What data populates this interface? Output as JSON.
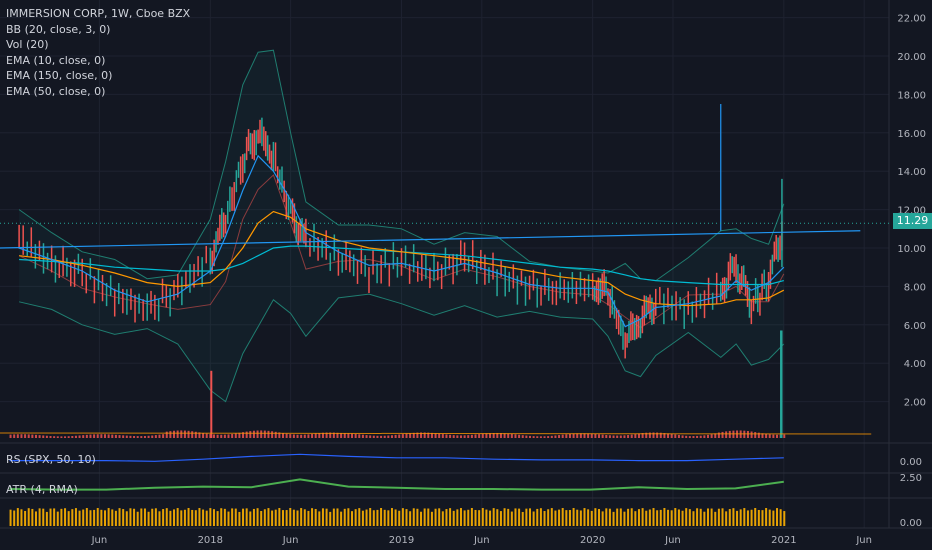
{
  "header": {
    "symbol_line": "IMMERSION CORP, 1W, Cboe BZX",
    "indicators": [
      "BB (20, close, 3, 0)",
      "Vol (20)",
      "EMA (10, close, 0)",
      "EMA (150, close, 0)",
      "EMA (50, close, 0)"
    ]
  },
  "price_tag": "11.29",
  "panes": {
    "rs_label": "RS (SPX, 50, 10)",
    "atr_label": "ATR (4, RMA)",
    "rs_ticks": [
      "0.00"
    ],
    "atr_ticks": [
      "2.50"
    ],
    "bottom_ticks": [
      "0.00"
    ]
  },
  "colors": {
    "background": "#131722",
    "up": "#26a69a",
    "down": "#ef5350",
    "bb_band": "#1f7d70",
    "ema10": "#2196f3",
    "ema50": "#ff9800",
    "ema150": "#00bcd4",
    "trendline": "#2196f3",
    "rs": "#2962ff",
    "atr": "#4caf50",
    "bottom": "#ffb300"
  },
  "chart_data": {
    "type": "line",
    "title": "IMMERSION CORP, 1W, Cboe BZX",
    "ylim": [
      0,
      22
    ],
    "y_ticks": [
      "2.00",
      "4.00",
      "6.00",
      "8.00",
      "10.00",
      "12.00",
      "14.00",
      "16.00",
      "18.00",
      "20.00",
      "22.00"
    ],
    "x_tick_labels": [
      "Jun",
      "2018",
      "Jun",
      "2019",
      "Jun",
      "2020",
      "Jun",
      "2021",
      "Jun"
    ],
    "x": [
      2017.0,
      2017.17,
      2017.33,
      2017.5,
      2017.67,
      2017.83,
      2018.0,
      2018.08,
      2018.17,
      2018.25,
      2018.33,
      2018.42,
      2018.5,
      2018.67,
      2018.83,
      2019.0,
      2019.17,
      2019.33,
      2019.5,
      2019.67,
      2019.83,
      2020.0,
      2020.08,
      2020.17,
      2020.25,
      2020.33,
      2020.5,
      2020.67,
      2020.75,
      2020.83,
      2020.92,
      2021.0
    ],
    "series": [
      {
        "name": "Close",
        "values": [
          10.5,
          9.2,
          8.7,
          7.5,
          6.8,
          7.8,
          9.5,
          11.5,
          14.5,
          16.0,
          14.8,
          11.8,
          10.5,
          9.5,
          8.8,
          9.3,
          8.7,
          9.5,
          8.6,
          7.9,
          7.8,
          8.0,
          7.7,
          5.2,
          6.2,
          7.3,
          6.8,
          7.8,
          9.1,
          7.0,
          8.2,
          11.29
        ]
      },
      {
        "name": "EMA (10, close, 0)",
        "values": [
          10.0,
          9.4,
          8.8,
          7.8,
          7.2,
          7.6,
          8.8,
          10.6,
          13.0,
          14.8,
          14.0,
          12.5,
          10.8,
          9.8,
          9.1,
          9.2,
          8.8,
          9.2,
          8.7,
          8.1,
          7.9,
          7.9,
          7.7,
          5.9,
          6.3,
          6.9,
          7.1,
          7.5,
          8.3,
          7.8,
          8.2,
          9.0
        ]
      },
      {
        "name": "EMA (50, close, 0)",
        "values": [
          9.6,
          9.4,
          9.1,
          8.7,
          8.2,
          8.0,
          8.2,
          8.9,
          10.0,
          11.3,
          11.9,
          11.6,
          11.0,
          10.4,
          10.0,
          9.8,
          9.6,
          9.4,
          9.1,
          8.8,
          8.5,
          8.3,
          8.2,
          7.6,
          7.3,
          7.1,
          7.0,
          7.1,
          7.3,
          7.3,
          7.4,
          7.8
        ]
      },
      {
        "name": "EMA (150, close, 0)",
        "values": [
          9.4,
          9.3,
          9.2,
          9.0,
          8.9,
          8.8,
          8.8,
          8.9,
          9.2,
          9.6,
          10.0,
          10.1,
          10.1,
          10.0,
          9.9,
          9.8,
          9.7,
          9.6,
          9.4,
          9.2,
          9.0,
          8.9,
          8.8,
          8.6,
          8.4,
          8.3,
          8.2,
          8.1,
          8.1,
          8.1,
          8.1,
          8.3
        ]
      },
      {
        "name": "BB upper",
        "values": [
          12.0,
          10.8,
          9.8,
          9.4,
          8.4,
          8.6,
          11.5,
          14.5,
          18.5,
          20.2,
          20.3,
          16.0,
          12.4,
          11.2,
          11.2,
          11.0,
          10.2,
          10.8,
          10.6,
          9.3,
          9.0,
          8.8,
          8.7,
          9.2,
          8.4,
          8.3,
          9.5,
          10.9,
          11.0,
          10.5,
          10.2,
          12.3
        ]
      },
      {
        "name": "BB lower",
        "values": [
          7.2,
          6.8,
          6.0,
          5.5,
          5.8,
          5.0,
          2.6,
          2.0,
          4.5,
          5.9,
          7.3,
          6.6,
          5.4,
          7.4,
          7.6,
          7.1,
          6.5,
          7.0,
          6.4,
          6.7,
          6.4,
          6.3,
          5.4,
          3.6,
          3.3,
          4.4,
          5.6,
          4.3,
          5.0,
          3.9,
          4.2,
          5.0
        ]
      }
    ],
    "trendline": {
      "from": [
        2016.9,
        10.0
      ],
      "to": [
        2021.4,
        10.9
      ]
    },
    "spike": {
      "x": 2020.67,
      "values": [
        17.5,
        10.9
      ]
    },
    "volume": {
      "x": [
        2017.0,
        2017.25,
        2017.5,
        2017.75,
        2018.0,
        2018.25,
        2018.42,
        2018.67,
        2019.0,
        2019.25,
        2019.5,
        2019.75,
        2020.0,
        2020.25,
        2020.5,
        2020.75,
        2021.0
      ],
      "values": [
        0.3,
        0.3,
        0.3,
        0.4,
        3.5,
        0.9,
        0.8,
        0.4,
        0.4,
        0.5,
        0.4,
        0.3,
        0.4,
        0.5,
        0.3,
        0.8,
        5.6
      ]
    },
    "rs": [
      0.1,
      0.1,
      0.1,
      0.05,
      0.2,
      0.4,
      0.55,
      0.4,
      0.3,
      0.3,
      0.2,
      0.15,
      0.15,
      0.1,
      0.1,
      0.2,
      0.3
    ],
    "atr": [
      1.0,
      0.9,
      0.9,
      1.2,
      1.4,
      1.3,
      2.6,
      1.4,
      1.2,
      1.0,
      1.0,
      0.9,
      0.9,
      1.3,
      1.0,
      1.1,
      2.2
    ]
  }
}
